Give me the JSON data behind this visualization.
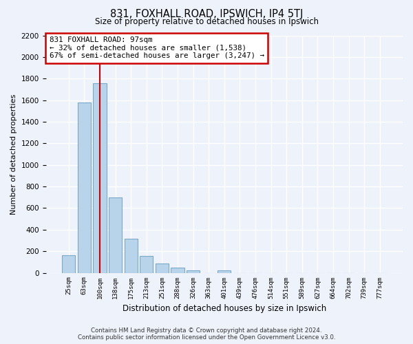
{
  "title": "831, FOXHALL ROAD, IPSWICH, IP4 5TJ",
  "subtitle": "Size of property relative to detached houses in Ipswich",
  "xlabel": "Distribution of detached houses by size in Ipswich",
  "ylabel": "Number of detached properties",
  "categories": [
    "25sqm",
    "63sqm",
    "100sqm",
    "138sqm",
    "175sqm",
    "213sqm",
    "251sqm",
    "288sqm",
    "326sqm",
    "363sqm",
    "401sqm",
    "439sqm",
    "476sqm",
    "514sqm",
    "551sqm",
    "589sqm",
    "627sqm",
    "664sqm",
    "702sqm",
    "739sqm",
    "777sqm"
  ],
  "values": [
    160,
    1580,
    1760,
    700,
    315,
    155,
    85,
    45,
    25,
    0,
    20,
    0,
    0,
    0,
    0,
    0,
    0,
    0,
    0,
    0,
    0
  ],
  "highlight_index": 2,
  "vline_color": "#cc0000",
  "bar_color": "#b8d4ea",
  "bar_edge_color": "#7aaac8",
  "annotation_line1": "831 FOXHALL ROAD: 97sqm",
  "annotation_line2": "← 32% of detached houses are smaller (1,538)",
  "annotation_line3": "67% of semi-detached houses are larger (3,247) →",
  "annotation_box_color": "#ffffff",
  "annotation_box_edge_color": "#cc0000",
  "ylim": [
    0,
    2200
  ],
  "yticks": [
    0,
    200,
    400,
    600,
    800,
    1000,
    1200,
    1400,
    1600,
    1800,
    2000,
    2200
  ],
  "footer_line1": "Contains HM Land Registry data © Crown copyright and database right 2024.",
  "footer_line2": "Contains public sector information licensed under the Open Government Licence v3.0.",
  "bg_color": "#eef2fb",
  "grid_color": "#ffffff"
}
